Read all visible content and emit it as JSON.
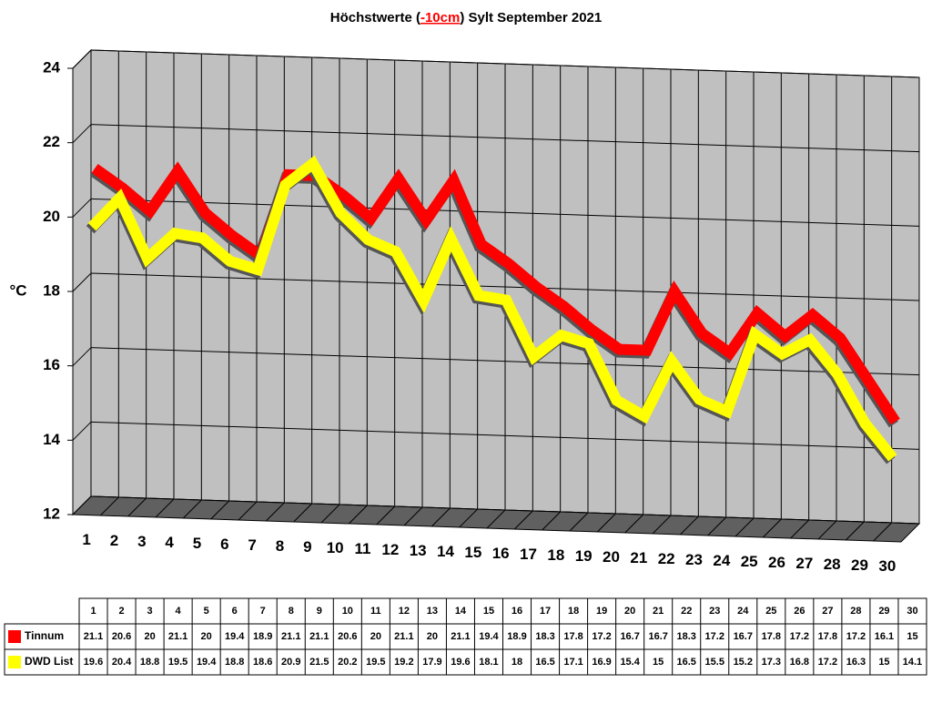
{
  "chart_data": {
    "type": "line",
    "title": [
      "Höchstwerte (",
      "-10cm",
      ") Sylt September 2021"
    ],
    "y_label": "°C",
    "categories": [
      "1",
      "2",
      "3",
      "4",
      "5",
      "6",
      "7",
      "8",
      "9",
      "10",
      "11",
      "12",
      "13",
      "14",
      "15",
      "16",
      "17",
      "18",
      "19",
      "20",
      "21",
      "22",
      "23",
      "24",
      "25",
      "26",
      "27",
      "28",
      "29",
      "30"
    ],
    "series": [
      {
        "name": "Tinnum",
        "color": "#ff0000",
        "values": [
          21.1,
          20.6,
          20,
          21.1,
          20,
          19.4,
          18.9,
          21.1,
          21.1,
          20.6,
          20,
          21.1,
          20,
          21.1,
          19.4,
          18.9,
          18.3,
          17.8,
          17.2,
          16.7,
          16.7,
          18.3,
          17.2,
          16.7,
          17.8,
          17.2,
          17.8,
          17.2,
          16.1,
          15
        ]
      },
      {
        "name": "DWD List",
        "color": "#ffff00",
        "values": [
          19.6,
          20.4,
          18.8,
          19.5,
          19.4,
          18.8,
          18.6,
          20.9,
          21.5,
          20.2,
          19.5,
          19.2,
          17.9,
          19.6,
          18.1,
          18,
          16.5,
          17.1,
          16.9,
          15.4,
          15,
          16.5,
          15.5,
          15.2,
          17.3,
          16.8,
          17.2,
          16.3,
          15,
          14.1
        ]
      }
    ],
    "ylim": [
      12,
      24
    ],
    "yticks": [
      12,
      14,
      16,
      18,
      20,
      22,
      24
    ],
    "grid": true
  }
}
